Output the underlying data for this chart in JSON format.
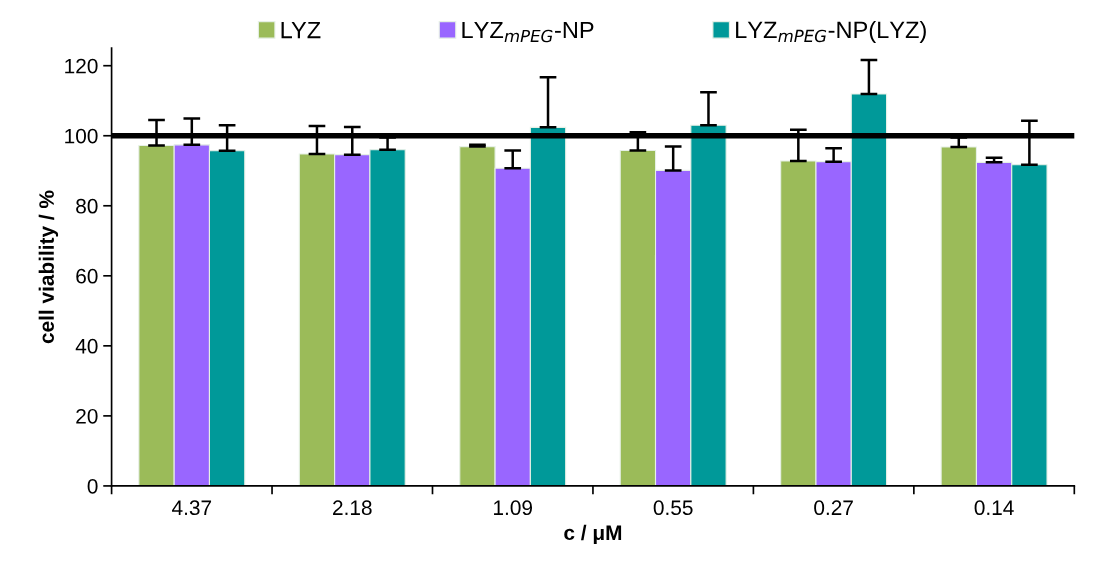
{
  "chart_data": {
    "type": "bar",
    "xlabel": "c / μM",
    "ylabel": "cell viability / %",
    "categories": [
      "4.37",
      "2.18",
      "1.09",
      "0.55",
      "0.27",
      "0.14"
    ],
    "series": [
      {
        "name": "LYZ",
        "color": "#9bbb59",
        "values": [
          97.2,
          94.8,
          96.9,
          95.8,
          92.8,
          96.8
        ],
        "errors": [
          [
            97.2,
            104.5
          ],
          [
            94.8,
            102.8
          ],
          [
            96.9,
            97.4
          ],
          [
            95.8,
            101.0
          ],
          [
            92.8,
            101.7
          ],
          [
            96.8,
            99.5
          ]
        ]
      },
      {
        "name": "LYZ$_{mPEG}$-NP",
        "color": "#9966ff",
        "values": [
          97.4,
          94.6,
          90.7,
          90.1,
          92.6,
          92.4
        ],
        "errors": [
          [
            97.4,
            104.9
          ],
          [
            94.6,
            102.5
          ],
          [
            90.7,
            95.8
          ],
          [
            90.1,
            96.9
          ],
          [
            92.6,
            96.4
          ],
          [
            92.4,
            93.7
          ]
        ]
      },
      {
        "name": "LYZ$_{mPEG}$-NP(LYZ)",
        "color": "#009999",
        "values": [
          95.7,
          96.0,
          102.4,
          103.0,
          111.9,
          91.7
        ],
        "errors": [
          [
            95.7,
            103.0
          ],
          [
            96.0,
            99.5
          ],
          [
            102.4,
            116.7
          ],
          [
            103.0,
            112.4
          ],
          [
            111.9,
            121.6
          ],
          [
            91.7,
            104.3
          ]
        ]
      }
    ],
    "ylim": [
      0,
      125
    ],
    "yticks": [
      0,
      20,
      40,
      60,
      80,
      100,
      120
    ],
    "ref_lines": [
      {
        "axis": "y",
        "value": 100,
        "color": "#000000",
        "line_style": "solid"
      }
    ],
    "grid": false,
    "legend": "top"
  }
}
